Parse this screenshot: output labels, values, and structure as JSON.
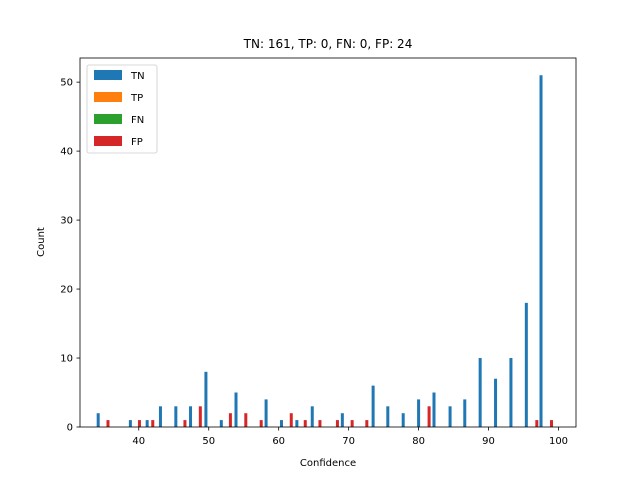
{
  "chart_data": {
    "type": "bar",
    "title": "TN: 161, TP: 0, FN: 0, FP: 24",
    "xlabel": "Confidence",
    "ylabel": "Count",
    "xlim": [
      31.6,
      102.5
    ],
    "ylim": [
      0,
      53.5
    ],
    "xticks": [
      40,
      50,
      60,
      70,
      80,
      90,
      100
    ],
    "yticks": [
      0,
      10,
      20,
      30,
      40,
      50
    ],
    "legend_position": "upper-left",
    "grid": false,
    "series": [
      {
        "name": "TN",
        "color": "#1f77b4",
        "points": [
          [
            34.2,
            2
          ],
          [
            38.8,
            1
          ],
          [
            41.2,
            1
          ],
          [
            43.1,
            3
          ],
          [
            45.3,
            3
          ],
          [
            47.4,
            3
          ],
          [
            49.6,
            8
          ],
          [
            51.8,
            1
          ],
          [
            53.9,
            5
          ],
          [
            58.2,
            4
          ],
          [
            60.4,
            1
          ],
          [
            62.6,
            1
          ],
          [
            64.8,
            3
          ],
          [
            69.1,
            2
          ],
          [
            73.5,
            6
          ],
          [
            75.6,
            3
          ],
          [
            77.8,
            2
          ],
          [
            80.0,
            4
          ],
          [
            82.2,
            5
          ],
          [
            84.5,
            3
          ],
          [
            86.6,
            4
          ],
          [
            88.8,
            10
          ],
          [
            91.0,
            7
          ],
          [
            93.2,
            10
          ],
          [
            95.4,
            18
          ],
          [
            97.5,
            51
          ]
        ]
      },
      {
        "name": "TP",
        "color": "#ff7f0e",
        "points": []
      },
      {
        "name": "FN",
        "color": "#2ca02c",
        "points": []
      },
      {
        "name": "FP",
        "color": "#d62728",
        "points": [
          [
            35.6,
            1
          ],
          [
            40.1,
            1
          ],
          [
            42.0,
            1
          ],
          [
            46.6,
            1
          ],
          [
            48.8,
            3
          ],
          [
            53.1,
            2
          ],
          [
            55.3,
            2
          ],
          [
            57.5,
            1
          ],
          [
            61.8,
            2
          ],
          [
            63.8,
            1
          ],
          [
            65.9,
            1
          ],
          [
            68.4,
            1
          ],
          [
            70.5,
            1
          ],
          [
            72.6,
            1
          ],
          [
            81.5,
            3
          ],
          [
            96.9,
            1
          ],
          [
            99.0,
            1
          ]
        ]
      }
    ]
  }
}
